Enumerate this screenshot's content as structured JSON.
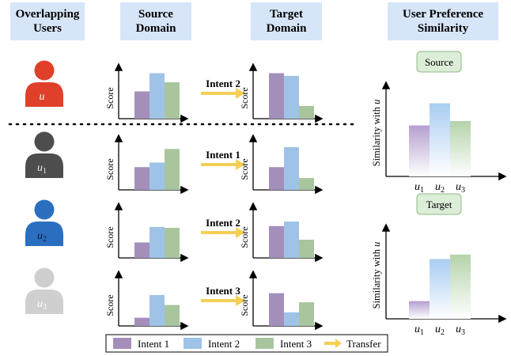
{
  "headers": {
    "users": "Overlapping\nUsers",
    "source": "Source\nDomain",
    "target": "Target\nDomain",
    "similarity": "User Preference\nSimilarity"
  },
  "axis_label": "Score",
  "colors": {
    "intent1": "#a48fbb",
    "intent2": "#9fc3e7",
    "intent3": "#a8c59e",
    "arrow": "#f5cf55",
    "user_u": "#e0402a",
    "user_u1": "#4d4d4d",
    "user_u2": "#2a6ebf",
    "user_u3": "#cfcfcf"
  },
  "users": [
    {
      "label": "u",
      "sub": "",
      "source": [
        3,
        5,
        4
      ],
      "intent": "Intent 2",
      "target": [
        5,
        4.7,
        1.4
      ]
    },
    {
      "label": "u",
      "sub": "1",
      "source": [
        2.5,
        3,
        4.5
      ],
      "intent": "Intent 1",
      "target": [
        2.5,
        4.7,
        1.3
      ]
    },
    {
      "label": "u",
      "sub": "2",
      "source": [
        1.7,
        3.4,
        3.3
      ],
      "intent": "Intent 2",
      "target": [
        3.5,
        4,
        2
      ]
    },
    {
      "label": "u",
      "sub": "3",
      "source": [
        0.9,
        3.4,
        2.3
      ],
      "intent": "Intent 3",
      "target": [
        3.6,
        1.5,
        2.6
      ]
    }
  ],
  "similarity": {
    "ylabel": "Similarity with u",
    "categories": [
      "u1",
      "u2",
      "u3"
    ],
    "source": {
      "tag": "Source",
      "values": [
        2.3,
        3.3,
        2.5
      ]
    },
    "target": {
      "tag": "Target",
      "values": [
        0.8,
        2.7,
        2.9
      ]
    }
  },
  "legend": {
    "intent1": "Intent 1",
    "intent2": "Intent 2",
    "intent3": "Intent 3",
    "transfer": "Transfer"
  }
}
